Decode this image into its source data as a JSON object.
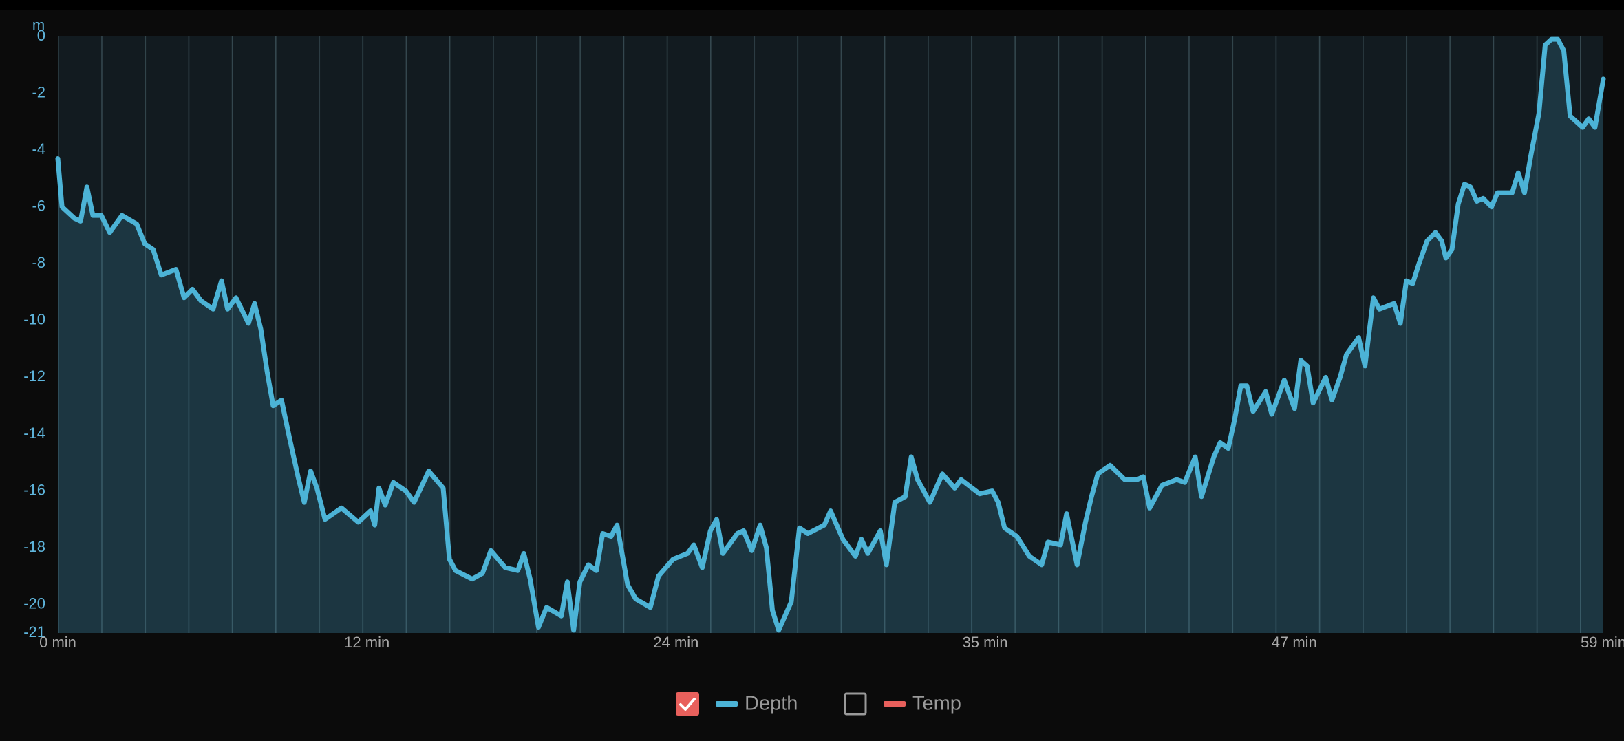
{
  "chart_data": {
    "type": "area",
    "y_unit": "m",
    "xlim": [
      0,
      59
    ],
    "ylim": [
      -21,
      0
    ],
    "xticks": [
      {
        "value": 0,
        "label": "0 min"
      },
      {
        "value": 11.8,
        "label": "12 min"
      },
      {
        "value": 23.6,
        "label": "24 min"
      },
      {
        "value": 35.4,
        "label": "35 min"
      },
      {
        "value": 47.2,
        "label": "47 min"
      },
      {
        "value": 59,
        "label": "59 min"
      }
    ],
    "yticks": [
      0,
      -2,
      -4,
      -6,
      -8,
      -10,
      -12,
      -14,
      -16,
      -18,
      -20,
      -21
    ],
    "x": [
      0,
      0.16,
      0.63,
      0.87,
      1.11,
      1.34,
      1.66,
      1.98,
      2.45,
      3.01,
      3.32,
      3.64,
      3.95,
      4.51,
      4.82,
      5.14,
      5.46,
      5.93,
      6.25,
      6.48,
      6.8,
      7.28,
      7.51,
      7.75,
      7.99,
      8.22,
      8.54,
      8.86,
      9.17,
      9.41,
      9.65,
      9.89,
      10.2,
      10.83,
      11.47,
      11.94,
      12.1,
      12.26,
      12.5,
      12.81,
      13.29,
      13.6,
      14.16,
      14.71,
      14.95,
      15.18,
      15.82,
      16.21,
      16.53,
      17.08,
      17.56,
      17.79,
      18.03,
      18.35,
      18.66,
      19.22,
      19.45,
      19.69,
      19.93,
      20.25,
      20.56,
      20.8,
      21.12,
      21.35,
      21.75,
      22.06,
      22.62,
      22.93,
      23.49,
      24.04,
      24.28,
      24.6,
      24.91,
      25.15,
      25.39,
      25.94,
      26.18,
      26.49,
      26.81,
      27.05,
      27.28,
      27.52,
      28.0,
      28.31,
      28.63,
      29.26,
      29.5,
      29.97,
      30.45,
      30.68,
      30.92,
      31.4,
      31.63,
      31.95,
      32.35,
      32.58,
      32.82,
      33.29,
      33.77,
      34.24,
      34.48,
      35.19,
      35.67,
      35.9,
      36.14,
      36.61,
      37.09,
      37.56,
      37.8,
      38.28,
      38.51,
      38.91,
      39.23,
      39.46,
      39.7,
      40.17,
      40.73,
      41.2,
      41.44,
      41.68,
      42.15,
      42.71,
      43.02,
      43.42,
      43.66,
      44.13,
      44.37,
      44.68,
      44.92,
      45.16,
      45.39,
      45.63,
      46.11,
      46.34,
      46.82,
      47.21,
      47.45,
      47.69,
      47.92,
      48.4,
      48.64,
      48.95,
      49.19,
      49.66,
      49.9,
      50.22,
      50.45,
      51.01,
      51.25,
      51.48,
      51.72,
      51.96,
      52.27,
      52.59,
      52.83,
      52.99,
      53.22,
      53.46,
      53.7,
      53.93,
      54.17,
      54.41,
      54.73,
      54.96,
      55.52,
      55.75,
      55.99,
      56.23,
      56.54,
      56.78,
      57.02,
      57.26,
      57.49,
      57.73,
      58.21,
      58.44,
      58.68,
      59.0
    ],
    "series": [
      {
        "name": "Depth",
        "color": "#4cb3d6",
        "visible": true,
        "values": [
          -4.3,
          -6.0,
          -6.4,
          -6.5,
          -5.3,
          -6.3,
          -6.3,
          -6.9,
          -6.3,
          -6.6,
          -7.3,
          -7.5,
          -8.4,
          -8.2,
          -9.2,
          -8.9,
          -9.3,
          -9.6,
          -8.6,
          -9.6,
          -9.2,
          -10.1,
          -9.4,
          -10.3,
          -11.8,
          -13.0,
          -12.8,
          -14.2,
          -15.5,
          -16.4,
          -15.3,
          -15.9,
          -17.0,
          -16.6,
          -17.1,
          -16.7,
          -17.2,
          -15.9,
          -16.5,
          -15.7,
          -16.0,
          -16.4,
          -15.3,
          -15.9,
          -18.4,
          -18.8,
          -19.1,
          -18.9,
          -18.1,
          -18.7,
          -18.8,
          -18.2,
          -19.1,
          -20.8,
          -20.1,
          -20.4,
          -19.2,
          -20.9,
          -19.2,
          -18.6,
          -18.8,
          -17.5,
          -17.6,
          -17.2,
          -19.3,
          -19.8,
          -20.1,
          -19.0,
          -18.4,
          -18.2,
          -17.9,
          -18.7,
          -17.4,
          -17.0,
          -18.2,
          -17.5,
          -17.4,
          -18.1,
          -17.2,
          -18.0,
          -20.2,
          -20.9,
          -19.9,
          -17.3,
          -17.5,
          -17.2,
          -16.7,
          -17.7,
          -18.3,
          -17.7,
          -18.2,
          -17.4,
          -18.6,
          -16.4,
          -16.2,
          -14.8,
          -15.6,
          -16.4,
          -15.4,
          -15.9,
          -15.6,
          -16.1,
          -16.0,
          -16.4,
          -17.3,
          -17.6,
          -18.3,
          -18.6,
          -17.8,
          -17.9,
          -16.8,
          -18.6,
          -17.1,
          -16.2,
          -15.4,
          -15.1,
          -15.6,
          -15.6,
          -15.5,
          -16.6,
          -15.8,
          -15.6,
          -15.7,
          -14.8,
          -16.2,
          -14.8,
          -14.3,
          -14.5,
          -13.5,
          -12.3,
          -12.3,
          -13.2,
          -12.5,
          -13.3,
          -12.1,
          -13.1,
          -11.4,
          -11.6,
          -12.9,
          -12.0,
          -12.8,
          -12.0,
          -11.2,
          -10.6,
          -11.6,
          -9.2,
          -9.6,
          -9.4,
          -10.1,
          -8.6,
          -8.7,
          -8.0,
          -7.2,
          -6.9,
          -7.2,
          -7.8,
          -7.5,
          -5.9,
          -5.2,
          -5.3,
          -5.8,
          -5.7,
          -6.0,
          -5.5,
          -5.5,
          -4.8,
          -5.5,
          -4.2,
          -2.7,
          -0.3,
          -0.1,
          -0.1,
          -0.5,
          -2.8,
          -3.2,
          -2.9,
          -3.2,
          -1.5
        ]
      },
      {
        "name": "Temp",
        "color": "#e8605c",
        "visible": false
      }
    ]
  }
}
